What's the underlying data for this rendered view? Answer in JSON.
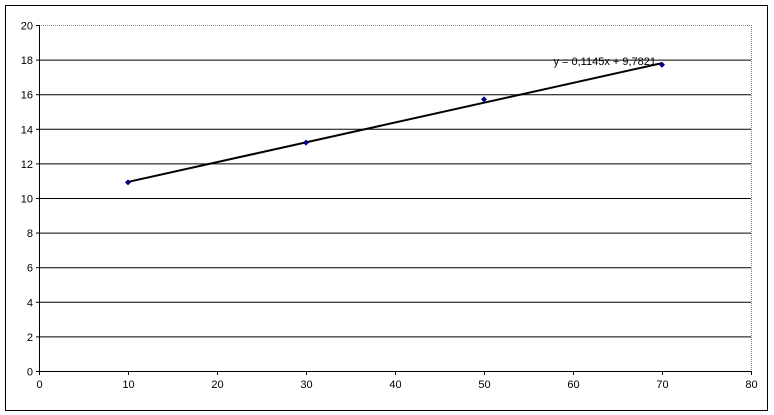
{
  "chart_data": {
    "type": "scatter",
    "title": "",
    "xlabel": "",
    "ylabel": "",
    "xlim": [
      0,
      80
    ],
    "ylim": [
      0,
      20
    ],
    "x_ticks": [
      0,
      10,
      20,
      30,
      40,
      50,
      60,
      70,
      80
    ],
    "y_ticks": [
      0,
      2,
      4,
      6,
      8,
      10,
      12,
      14,
      16,
      18,
      20
    ],
    "grid": "horizontal major",
    "legend": "none",
    "series": [
      {
        "x": [
          10,
          30,
          50,
          70
        ],
        "y": [
          10.9,
          13.2,
          15.7,
          17.7
        ],
        "marker": "diamond",
        "color": "#000080"
      }
    ],
    "trendline": {
      "type": "linear",
      "slope": 0.1145,
      "intercept": 9.7821,
      "x_range": [
        10,
        70
      ],
      "label": "y = 0,1145x + 9,7821",
      "color": "#000000"
    }
  }
}
